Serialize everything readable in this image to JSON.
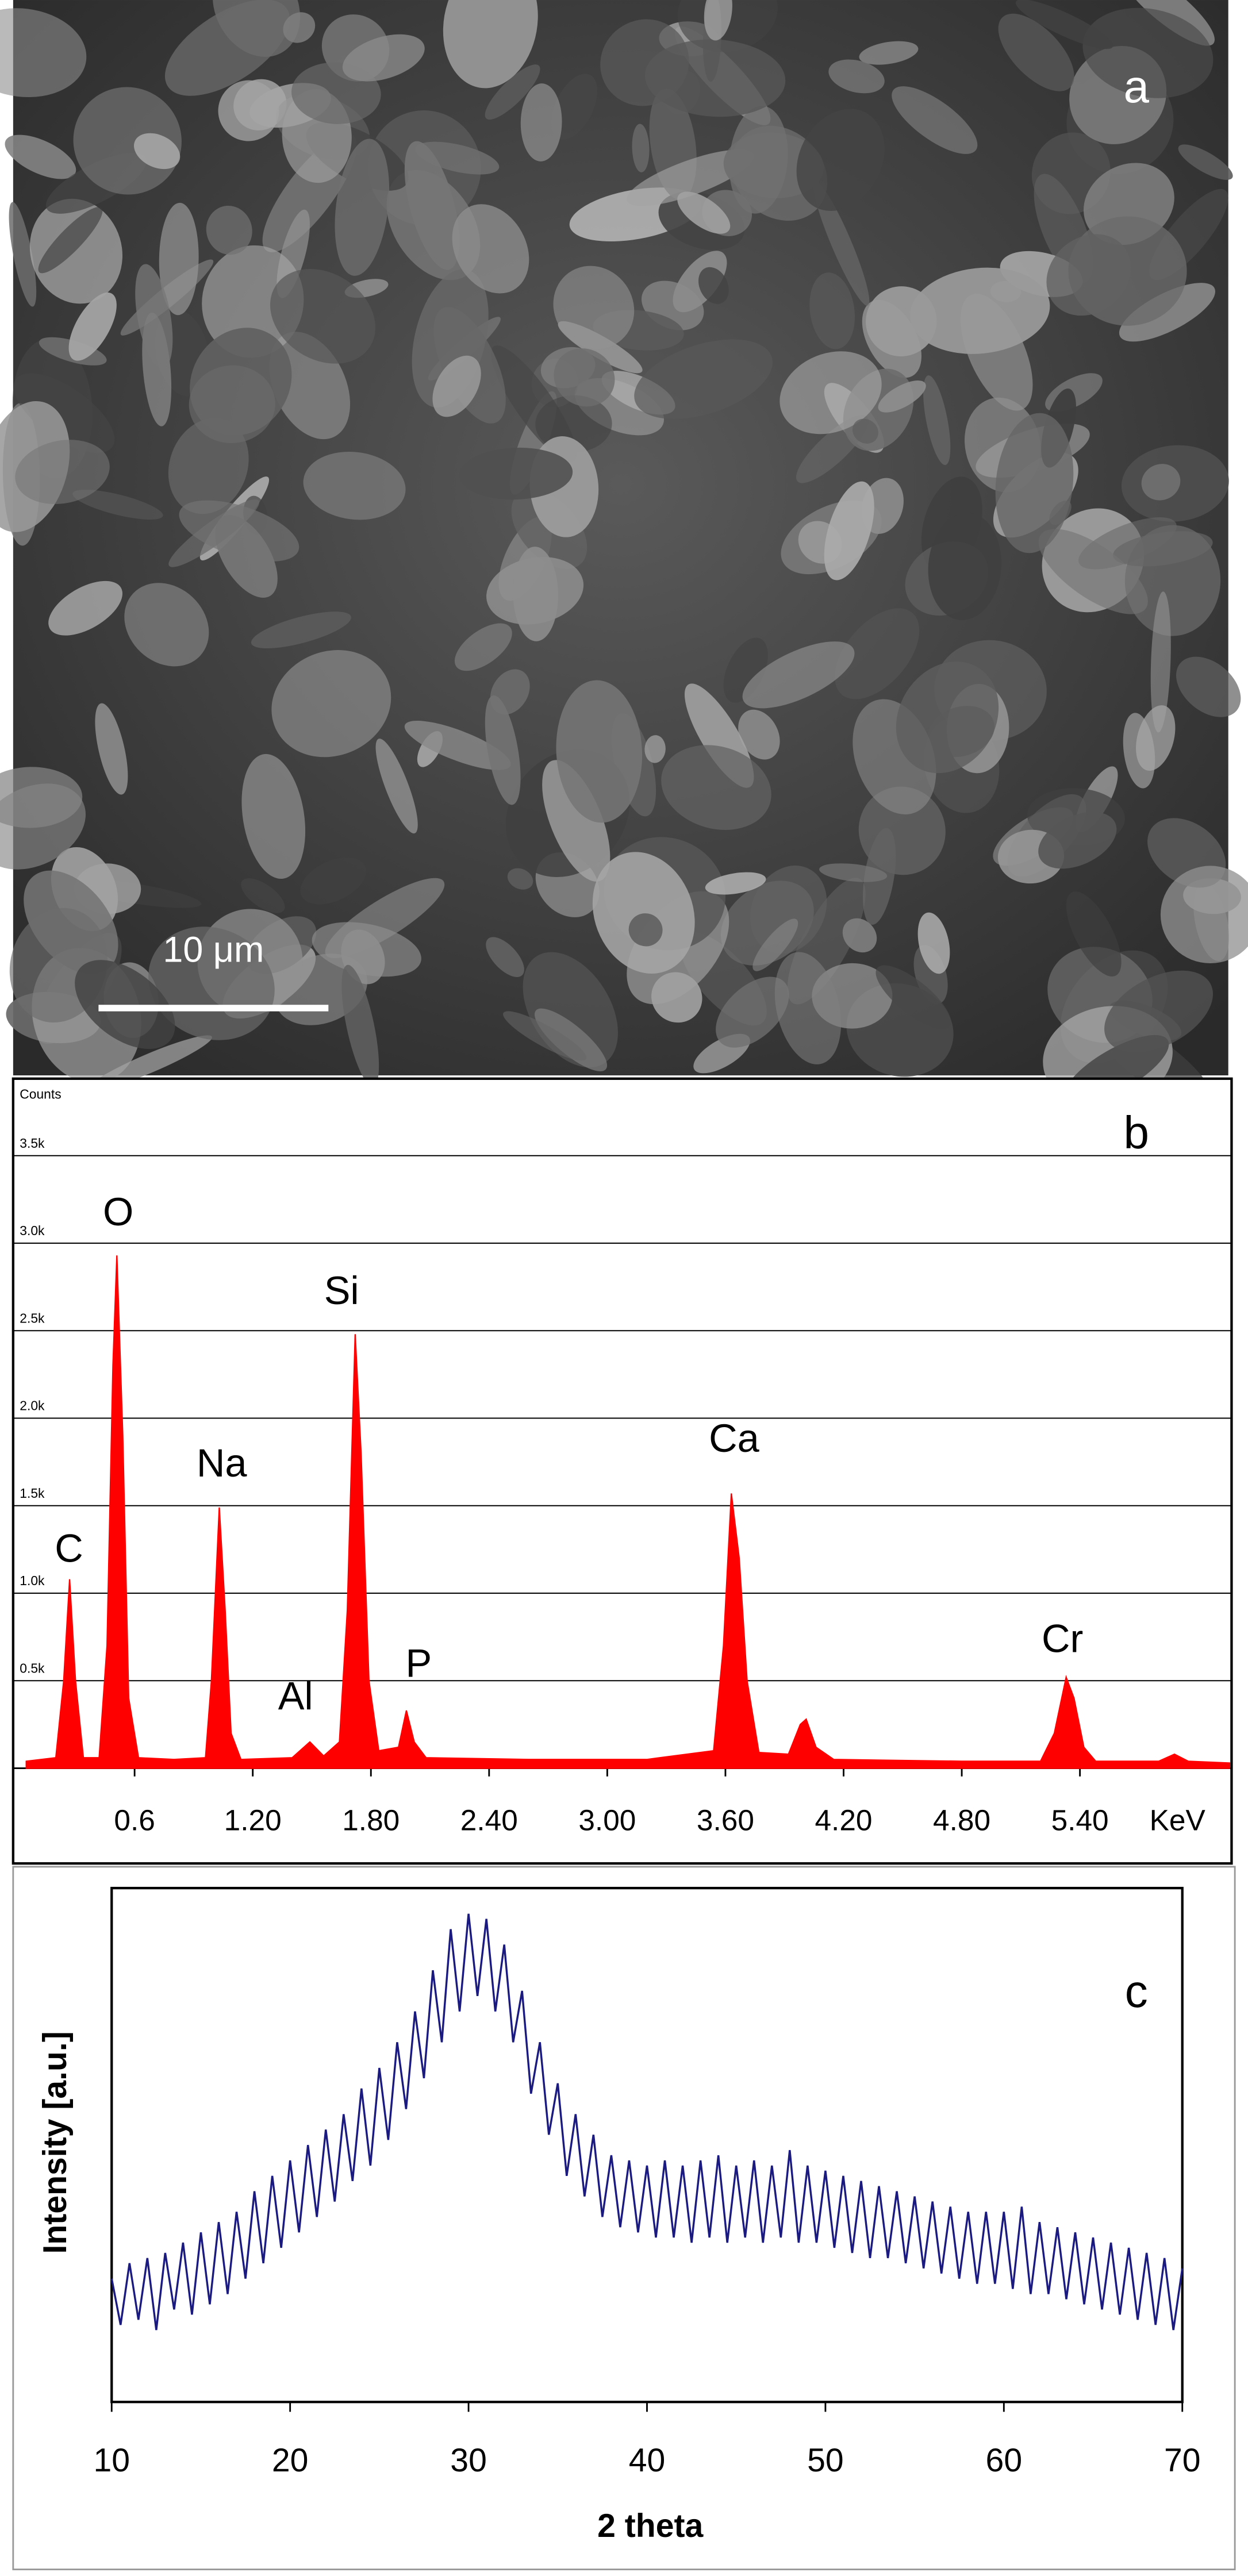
{
  "chart_data": [
    {
      "type": "image",
      "label": "a",
      "scale_bar": "10 μm"
    },
    {
      "type": "area",
      "label": "b",
      "y_title": "Counts",
      "x_unit": "KeV",
      "color": "#ff0000",
      "peak_labels": [
        "C",
        "O",
        "Na",
        "Al",
        "Si",
        "P",
        "Ca",
        "Cr"
      ],
      "x": [
        0.05,
        0.2,
        0.24,
        0.27,
        0.3,
        0.34,
        0.42,
        0.46,
        0.49,
        0.51,
        0.54,
        0.57,
        0.62,
        0.8,
        0.96,
        0.99,
        1.03,
        1.06,
        1.09,
        1.14,
        1.4,
        1.49,
        1.56,
        1.64,
        1.68,
        1.72,
        1.75,
        1.79,
        1.84,
        1.94,
        1.98,
        2.02,
        2.08,
        2.6,
        3.2,
        3.54,
        3.59,
        3.63,
        3.67,
        3.71,
        3.77,
        3.92,
        3.98,
        4.01,
        4.06,
        4.15,
        4.8,
        5.2,
        5.27,
        5.33,
        5.37,
        5.42,
        5.48,
        5.8,
        5.88,
        5.95,
        6.16
      ],
      "values": [
        40,
        60,
        500,
        1080,
        500,
        60,
        60,
        700,
        2300,
        2930,
        1900,
        400,
        60,
        50,
        60,
        500,
        1490,
        900,
        200,
        50,
        60,
        150,
        70,
        150,
        900,
        2480,
        1800,
        500,
        100,
        120,
        330,
        150,
        60,
        50,
        50,
        100,
        700,
        1570,
        1200,
        500,
        90,
        80,
        250,
        280,
        120,
        50,
        40,
        40,
        200,
        520,
        400,
        120,
        40,
        40,
        80,
        40,
        30
      ],
      "xlim": [
        0,
        6.17
      ],
      "ylim": [
        0,
        3940
      ],
      "xticks": [
        0.6,
        {
          "value": 1.2,
          "label": "1.20"
        },
        {
          "value": 1.8,
          "label": "1.80"
        },
        {
          "value": 2.4,
          "label": "2.40"
        },
        {
          "value": 3,
          "label": "3.00"
        },
        {
          "value": 3.6,
          "label": "3.60"
        },
        {
          "value": 4.2,
          "label": "4.20"
        },
        {
          "value": 4.8,
          "label": "4.80"
        },
        {
          "value": 5.4,
          "label": "5.40"
        }
      ],
      "yticks": [
        {
          "value": 500,
          "label": "0.5k"
        },
        {
          "value": 1000,
          "label": "1.0k"
        },
        {
          "value": 1500,
          "label": "1.5k"
        },
        {
          "value": 2000,
          "label": "2.0k"
        },
        {
          "value": 2500,
          "label": "2.5k"
        },
        {
          "value": 3000,
          "label": "3.0k"
        },
        {
          "value": 3500,
          "label": "3.5k"
        }
      ],
      "grid": true
    },
    {
      "type": "line",
      "label": "c",
      "x_label": "2 theta",
      "y_label": "Intensity [a.u.]",
      "color": "#1a1a80",
      "x": [
        10,
        10.5,
        11,
        11.5,
        12,
        12.5,
        13,
        13.5,
        14,
        14.5,
        15,
        15.5,
        16,
        16.5,
        17,
        17.5,
        18,
        18.5,
        19,
        19.5,
        20,
        20.5,
        21,
        21.5,
        22,
        22.5,
        23,
        23.5,
        24,
        24.5,
        25,
        25.5,
        26,
        26.5,
        27,
        27.5,
        28,
        28.5,
        29,
        29.5,
        30,
        30.5,
        31,
        31.5,
        32,
        32.5,
        33,
        33.5,
        34,
        34.5,
        35,
        35.5,
        36,
        36.5,
        37,
        37.5,
        38,
        38.5,
        39,
        39.5,
        40,
        40.5,
        41,
        41.5,
        42,
        42.5,
        43,
        43.5,
        44,
        44.5,
        45,
        45.5,
        46,
        46.5,
        47,
        47.5,
        48,
        48.5,
        49,
        49.5,
        50,
        50.5,
        51,
        51.5,
        52,
        52.5,
        53,
        53.5,
        54,
        54.5,
        55,
        55.5,
        56,
        56.5,
        57,
        57.5,
        58,
        58.5,
        59,
        59.5,
        60,
        60.5,
        61,
        61.5,
        62,
        62.5,
        63,
        63.5,
        64,
        64.5,
        65,
        65.5,
        66,
        66.5,
        67,
        67.5,
        68,
        68.5,
        69,
        69.5,
        70
      ],
      "values": [
        24,
        15,
        27,
        16,
        28,
        14,
        29,
        18,
        31,
        17,
        33,
        19,
        35,
        21,
        37,
        24,
        41,
        27,
        44,
        30,
        47,
        33,
        50,
        36,
        53,
        39,
        56,
        43,
        61,
        46,
        65,
        51,
        70,
        57,
        76,
        63,
        84,
        70,
        92,
        76,
        95,
        79,
        94,
        76,
        89,
        70,
        80,
        60,
        70,
        52,
        62,
        44,
        56,
        40,
        52,
        36,
        48,
        34,
        47,
        33,
        46,
        32,
        47,
        32,
        46,
        31,
        47,
        32,
        48,
        31,
        46,
        32,
        47,
        31,
        46,
        32,
        49,
        31,
        46,
        31,
        45,
        30,
        44,
        29,
        43,
        28,
        42,
        28,
        41,
        27,
        40,
        26,
        39,
        25,
        38,
        24,
        37,
        23,
        37,
        23,
        37,
        22,
        38,
        21,
        35,
        21,
        34,
        20,
        33,
        19,
        32,
        18,
        31,
        17,
        30,
        16,
        29,
        15,
        28,
        14,
        26
      ],
      "xlim": [
        10,
        70
      ],
      "ylim": [
        0,
        100
      ],
      "xticks": [
        10,
        20,
        30,
        40,
        50,
        60,
        70
      ]
    }
  ]
}
